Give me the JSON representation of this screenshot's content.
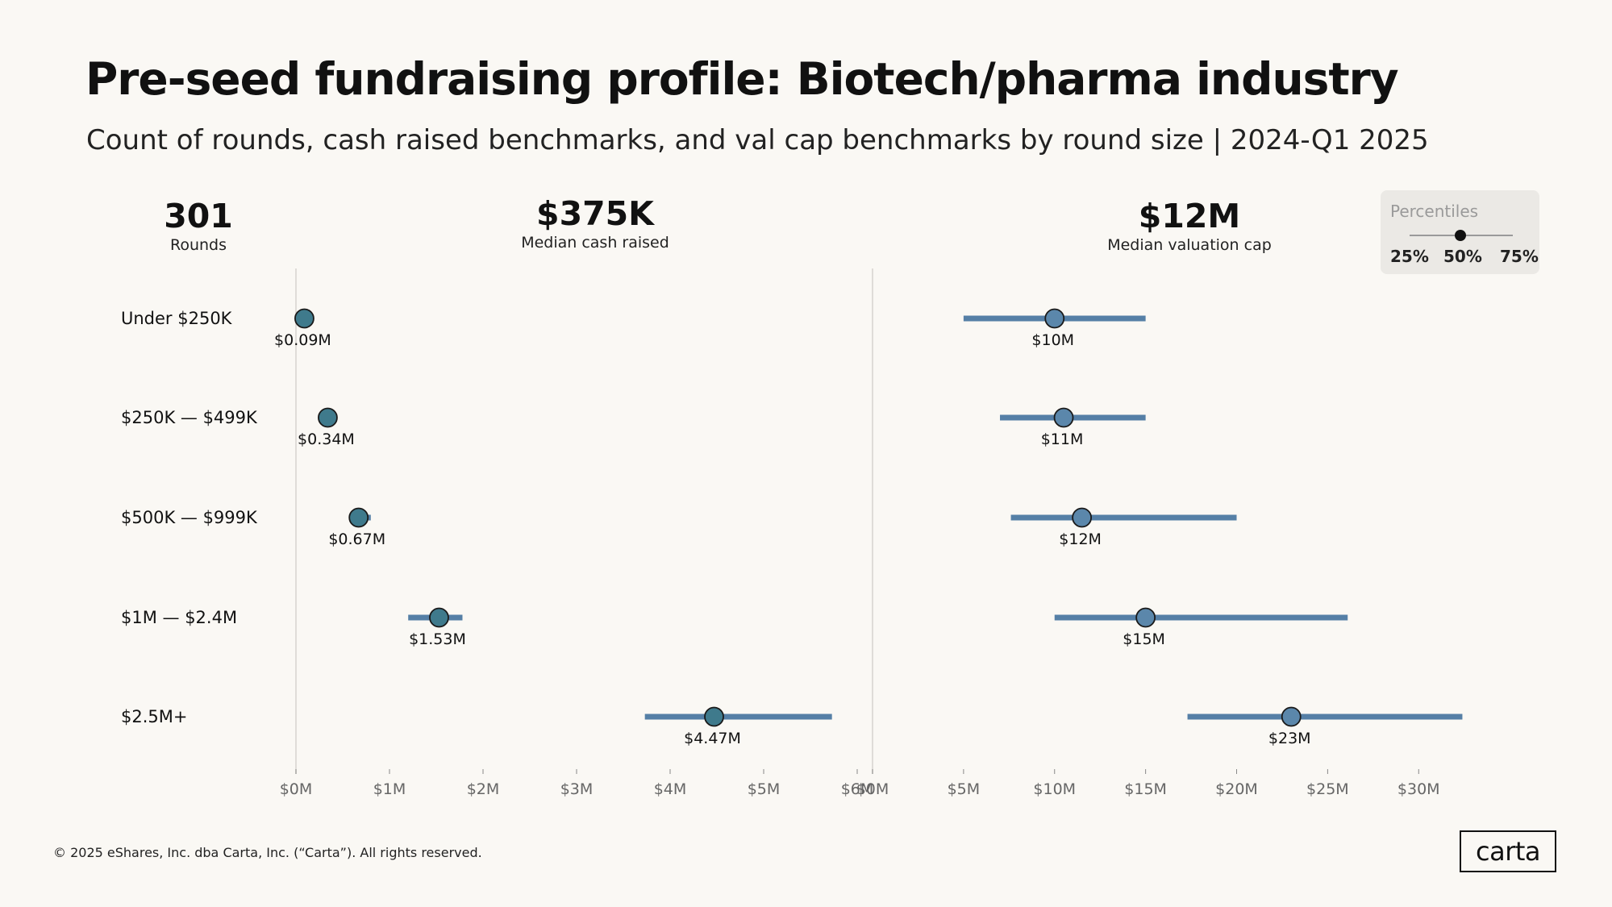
{
  "title": "Pre-seed fundraising profile: Biotech/pharma industry",
  "subtitle": "Count of rounds, cash raised benchmarks, and val cap benchmarks by round size | 2024-Q1 2025",
  "stats": {
    "rounds": {
      "value": "301",
      "label": "Rounds"
    },
    "cash": {
      "value": "$375K",
      "label": "Median cash raised"
    },
    "valcap": {
      "value": "$12M",
      "label": "Median valuation cap"
    }
  },
  "legend": {
    "title": "Percentiles",
    "p25": "25%",
    "p50": "50%",
    "p75": "75%"
  },
  "footer": {
    "copyright": "© 2025 eShares, Inc. dba Carta, Inc. (“Carta”). All rights reserved.",
    "logo": "carta"
  },
  "colors": {
    "cash_dot": "#3f7a8c",
    "valcap_dot": "#5b87ab",
    "range_bar": "#557fa6",
    "axis": "#d6d3ce",
    "tick_text": "#666666"
  },
  "chart_data": [
    {
      "type": "dot-range",
      "name": "cash_raised",
      "unit": "$M",
      "xlim": [
        0,
        6
      ],
      "xticks": [
        0,
        1,
        2,
        3,
        4,
        5,
        6
      ],
      "xtick_labels": [
        "$0M",
        "$1M",
        "$2M",
        "$3M",
        "$4M",
        "$5M",
        "$6M"
      ],
      "categories": [
        "Under $250K",
        "$250K — $499K",
        "$500K — $999K",
        "$1M — $2.4M",
        "$2.5M+"
      ],
      "p25": [
        0.08,
        0.33,
        0.64,
        1.2,
        3.73
      ],
      "p50": [
        0.09,
        0.34,
        0.67,
        1.53,
        4.47
      ],
      "p75": [
        0.1,
        0.35,
        0.8,
        1.78,
        5.73
      ],
      "labels": [
        "$0.09M",
        "$0.34M",
        "$0.67M",
        "$1.53M",
        "$4.47M"
      ]
    },
    {
      "type": "dot-range",
      "name": "valuation_cap",
      "unit": "$M",
      "xlim": [
        0,
        33
      ],
      "xticks": [
        0,
        5,
        10,
        15,
        20,
        25,
        30
      ],
      "xtick_labels": [
        "$0M",
        "$5M",
        "$10M",
        "$15M",
        "$20M",
        "$25M",
        "$30M"
      ],
      "categories": [
        "Under $250K",
        "$250K — $499K",
        "$500K — $999K",
        "$1M — $2.4M",
        "$2.5M+"
      ],
      "p25": [
        5,
        7,
        7.6,
        10,
        17.3
      ],
      "p50": [
        10,
        10.5,
        11.5,
        15,
        23
      ],
      "p75": [
        15,
        15,
        20,
        26.1,
        32.4
      ],
      "labels": [
        "$10M",
        "$11M",
        "$12M",
        "$15M",
        "$23M"
      ]
    }
  ]
}
